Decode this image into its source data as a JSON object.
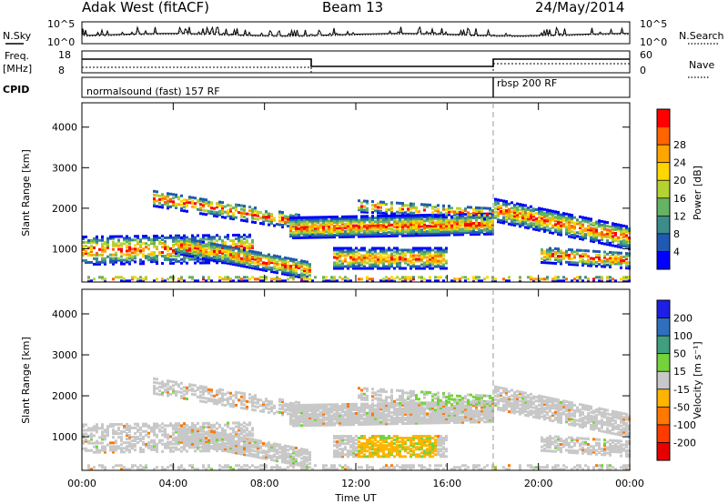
{
  "header": {
    "station": "Adak West (fitACF)",
    "beam": "Beam 13",
    "date": "24/May/2014"
  },
  "top_panels": {
    "nsky_label": "N.Sky",
    "nsky_tick_top": "10^5",
    "nsky_tick_bottom": "10^0",
    "nsearch_label": "N.Search",
    "freq_label_line1": "Freq.",
    "freq_label_line2": "[MHz]",
    "freq_tick_top": "18",
    "freq_tick_bottom": "8",
    "nave_tick_top": "60",
    "nave_tick_bottom": "0",
    "nave_label": "Nave",
    "cpid_label": "CPID",
    "cpid_segments": [
      {
        "label": "normalsound (fast) 157 RF",
        "start_h": 0
      },
      {
        "label": "rbsp 200 RF",
        "start_h": 18
      }
    ]
  },
  "chart_data": [
    {
      "type": "heatmap",
      "name": "power",
      "ylabel": "Slant Range [km]",
      "xlabel": "",
      "xlim": [
        0,
        24
      ],
      "ylim": [
        180,
        4600
      ],
      "yticks": [
        1000,
        2000,
        3000,
        4000
      ],
      "colorbar": {
        "label": "Power [dB]",
        "ticks": [
          "4",
          "8",
          "12",
          "16",
          "20",
          "24",
          "28"
        ],
        "colors": [
          "#0000ff",
          "#1e5ab4",
          "#3c8c8c",
          "#64b464",
          "#b4d232",
          "#ffd700",
          "#ffa500",
          "#ff6400",
          "#ff0000"
        ]
      }
    },
    {
      "type": "heatmap",
      "name": "velocity",
      "ylabel": "Slant Range [km]",
      "xlabel": "Time UT",
      "xlim": [
        0,
        24
      ],
      "ylim": [
        180,
        4600
      ],
      "yticks": [
        1000,
        2000,
        3000,
        4000
      ],
      "xticks": [
        "00:00",
        "04:00",
        "08:00",
        "12:00",
        "16:00",
        "20:00",
        "00:00"
      ],
      "colorbar": {
        "label": "Velocity [m s⁻¹]",
        "ticks": [
          "200",
          "100",
          "50",
          "15",
          "-15",
          "-50",
          "-100",
          "-200"
        ],
        "colors": [
          "#1e1ee6",
          "#2f6fbf",
          "#3f9f7f",
          "#76d23a",
          "#c8c8c8",
          "#ffb400",
          "#ff7800",
          "#ff3c00",
          "#e60000"
        ]
      }
    }
  ]
}
